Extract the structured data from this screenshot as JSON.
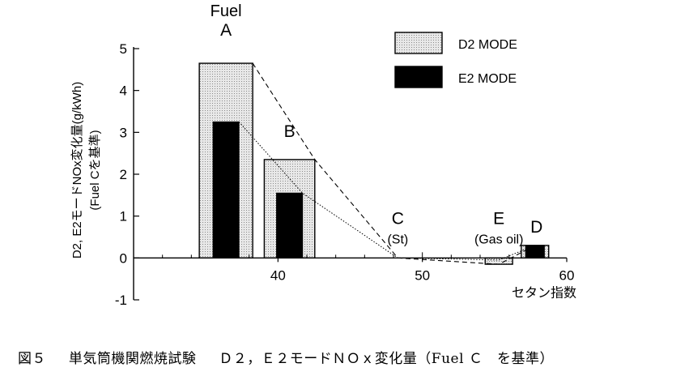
{
  "chart_data": {
    "type": "bar",
    "ylabel_lines": [
      "D2, E2モードNOx変化量(g/kWh)",
      "(Fuel Cを基準)"
    ],
    "xlabel": "セタン指数",
    "xlim": [
      30,
      60
    ],
    "ylim": [
      -1,
      5
    ],
    "xticks": [
      40,
      50,
      60
    ],
    "yticks": [
      -1,
      0,
      1,
      2,
      3,
      4,
      5
    ],
    "grid": false,
    "legend_position": "top-right",
    "series": [
      {
        "name": "D2 MODE",
        "color": "#d9d9d9",
        "values": [
          4.65,
          2.35,
          0,
          -0.15,
          0.3
        ]
      },
      {
        "name": "E2 MODE",
        "color": "#000000",
        "values": [
          3.25,
          1.55,
          0,
          -0.05,
          0.3
        ]
      }
    ],
    "fuels": [
      {
        "label": "A",
        "x": 36.4,
        "label_lines": [
          "Fuel",
          "A"
        ]
      },
      {
        "label": "B",
        "x": 40.8,
        "label_lines": [
          "B"
        ]
      },
      {
        "label": "C",
        "x": 48.3,
        "label_lines": [
          "C",
          "(St)"
        ]
      },
      {
        "label": "E",
        "x": 55.3,
        "label_lines": [
          "E",
          "(Gas oil)"
        ]
      },
      {
        "label": "D",
        "x": 57.8,
        "label_lines": [
          "D"
        ]
      }
    ]
  },
  "caption": {
    "figure": "図５",
    "test": "単気筒機関燃焼試験",
    "title": "Ｄ２，Ｅ２モードＮＯｘ変化量（Fuel Ｃ　を基準）"
  }
}
